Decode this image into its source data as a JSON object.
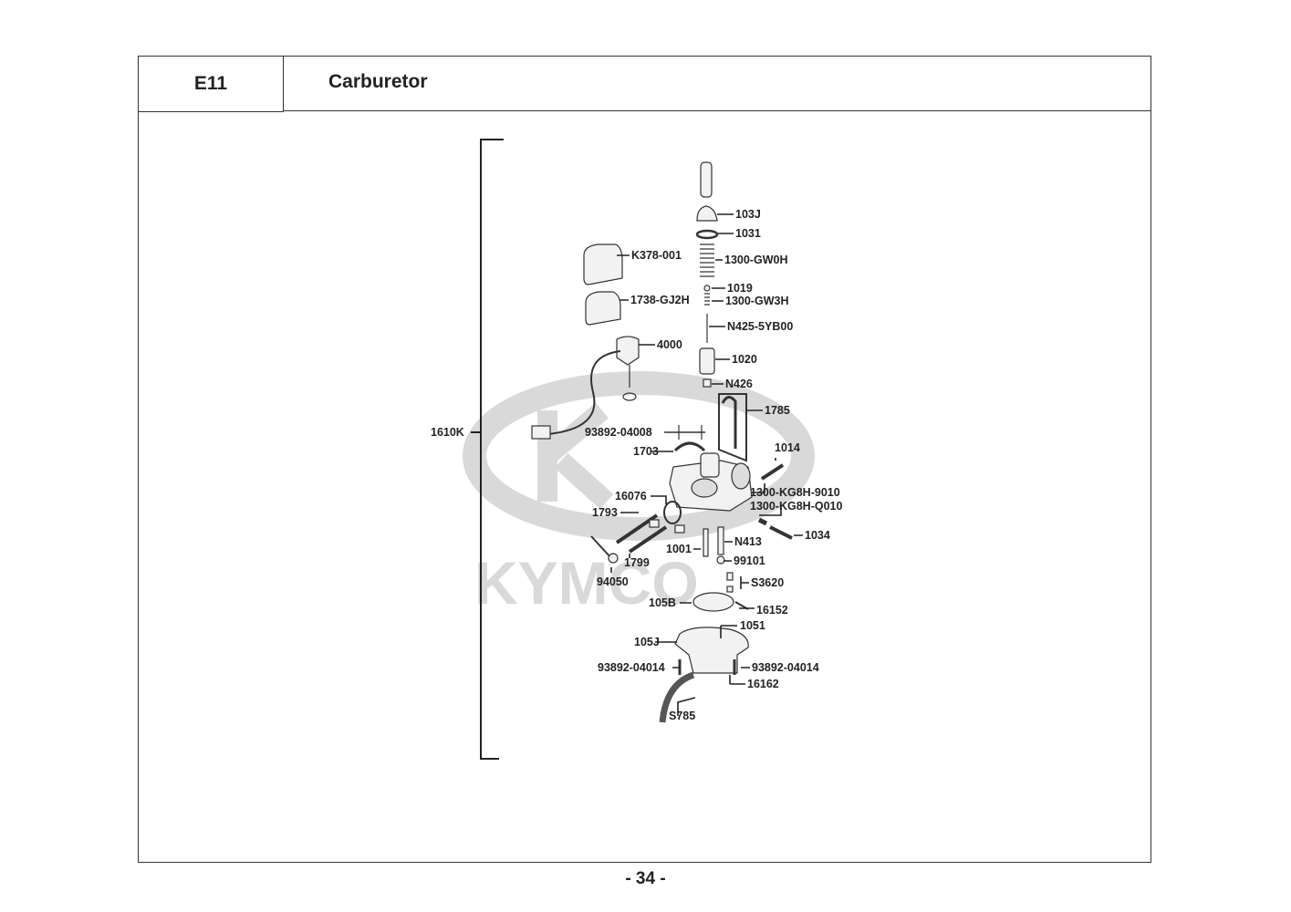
{
  "header": {
    "section_code": "E11",
    "title": "Carburetor"
  },
  "diagram": {
    "watermark": "KYMCO",
    "watermark_color": "#d9d9d9",
    "assembly_label": "1610K",
    "part_labels": [
      "103J",
      "1031",
      "K378-001",
      "1300-GW0H",
      "1019",
      "1738-GJ2H",
      "1300-GW3H",
      "N425-5YB00",
      "4000",
      "1020",
      "N426",
      "1785",
      "93892-04008",
      "1703",
      "1014",
      "1300-KG8H-9010",
      "1300-KG8H-Q010",
      "16076",
      "1793",
      "1034",
      "1001",
      "N413",
      "99101",
      "1799",
      "94050",
      "S3620",
      "105B",
      "16152",
      "1051",
      "105J",
      "93892-04014",
      "93892-04014",
      "16162",
      "S785"
    ]
  },
  "footer": {
    "page_number": "- 34 -"
  }
}
